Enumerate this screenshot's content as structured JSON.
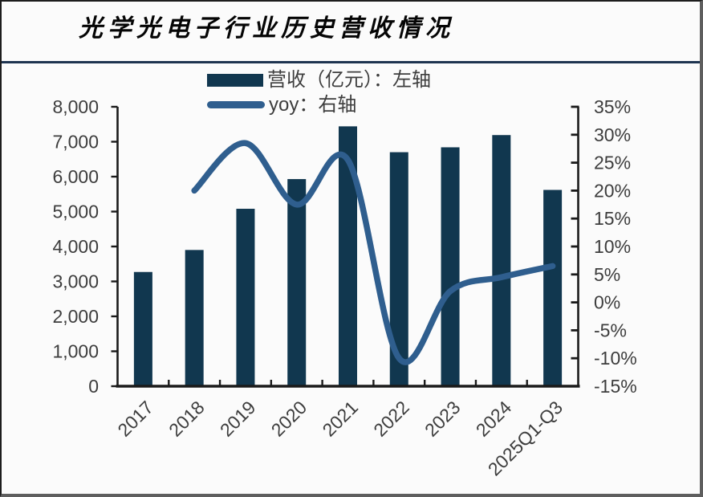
{
  "window": {
    "bg_color": "#FBFBFB",
    "frame_dark_color": "#1d1d1d",
    "frame_shadow_color": "#5e5e5e"
  },
  "header": {
    "title": "光学光电子行业历史营收情况",
    "rule_color": "#1E3450"
  },
  "legend": {
    "items": [
      {
        "swatch": "bar-swatch",
        "label": "营收（亿元）：左轴",
        "color": "#11374F"
      },
      {
        "swatch": "line-swatch",
        "label": "yoy：右轴",
        "color": "#2F5E8E"
      }
    ]
  },
  "chart_data": {
    "type": "combo",
    "title": "光学光电子行业历史营收情况",
    "categories": [
      "2017",
      "2018",
      "2019",
      "2020",
      "2021",
      "2022",
      "2023",
      "2024",
      "2025Q1-Q3"
    ],
    "series": [
      {
        "name": "营收（亿元）：左轴",
        "type": "bar",
        "axis": "left",
        "color": "#11374F",
        "values": [
          3270,
          3900,
          5080,
          5930,
          7440,
          6700,
          6840,
          7190,
          5620
        ]
      },
      {
        "name": "yoy：右轴",
        "type": "line",
        "axis": "right",
        "color": "#2F5E8E",
        "smooth": true,
        "unit": "%",
        "values": [
          null,
          20.0,
          28.5,
          17.5,
          25.5,
          -10.0,
          2.0,
          4.5,
          6.5
        ]
      }
    ],
    "y_left": {
      "min": 0,
      "max": 8000,
      "step": 1000,
      "tick_labels": [
        "0",
        "1,000",
        "2,000",
        "3,000",
        "4,000",
        "5,000",
        "6,000",
        "7,000",
        "8,000"
      ]
    },
    "y_right": {
      "min": -15,
      "max": 35,
      "step": 5,
      "tick_labels": [
        "-15%",
        "-10%",
        "-5%",
        "0%",
        "5%",
        "10%",
        "15%",
        "20%",
        "25%",
        "30%",
        "35%"
      ]
    },
    "grid": false,
    "legend_position": "top-center",
    "x_label_rotation_deg": 45,
    "axis_color": "#1a1a1a",
    "tick_label_color": "#3d3d3d"
  }
}
